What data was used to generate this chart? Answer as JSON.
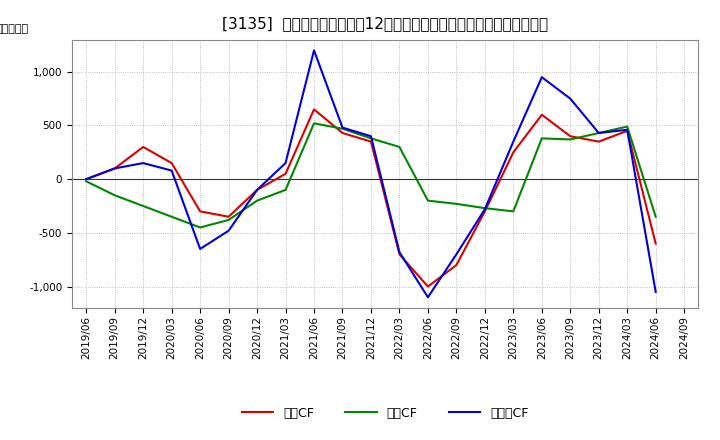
{
  "title": "[3135]  キャッシュフローの12か月移動合計の対前年同期増減額の推移",
  "ylabel": "（百万円）",
  "background_color": "#ffffff",
  "plot_bg_color": "#ffffff",
  "grid_color": "#aaaaaa",
  "x_labels": [
    "2019/06",
    "2019/09",
    "2019/12",
    "2020/03",
    "2020/06",
    "2020/09",
    "2020/12",
    "2021/03",
    "2021/06",
    "2021/09",
    "2021/12",
    "2022/03",
    "2022/06",
    "2022/09",
    "2022/12",
    "2023/03",
    "2023/06",
    "2023/09",
    "2023/12",
    "2024/03",
    "2024/06",
    "2024/09"
  ],
  "営業CF": [
    0,
    100,
    300,
    150,
    -300,
    -350,
    -100,
    50,
    650,
    430,
    350,
    -700,
    -1000,
    -800,
    -300,
    250,
    600,
    400,
    350,
    450,
    -600,
    null
  ],
  "投資CF": [
    -20,
    -150,
    -250,
    -350,
    -450,
    -380,
    -200,
    -100,
    520,
    470,
    380,
    300,
    -200,
    -230,
    -270,
    -300,
    380,
    370,
    430,
    490,
    -350,
    null
  ],
  "フリーCF": [
    0,
    100,
    150,
    80,
    -650,
    -480,
    -100,
    150,
    1200,
    480,
    400,
    -680,
    -1100,
    -700,
    -280,
    350,
    950,
    750,
    430,
    460,
    -1050,
    null
  ],
  "series_names": [
    "営業CF",
    "投資CF",
    "フリーCF"
  ],
  "legend_labels": [
    "営業CF",
    "投資CF",
    "フリーCF"
  ],
  "line_colors": {
    "営業CF": "#dd0000",
    "投資CF": "#008800",
    "フリーCF": "#0000dd"
  },
  "ylim": [
    -1200,
    1300
  ],
  "yticks": [
    -1000,
    -500,
    0,
    500,
    1000
  ],
  "title_fontsize": 11,
  "legend_fontsize": 9,
  "tick_fontsize": 7.5
}
